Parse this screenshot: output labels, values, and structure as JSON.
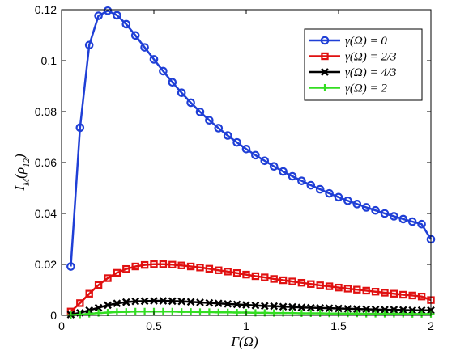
{
  "chart_data": {
    "type": "line",
    "title": "",
    "xlabel": "Γ(Ω)",
    "ylabel": "I_M(ρ12)",
    "xlim": [
      0,
      2
    ],
    "ylim": [
      0,
      0.12
    ],
    "xticks": [
      "0",
      "0.5",
      "1",
      "1.5",
      "2"
    ],
    "yticks": [
      "0",
      "0.02",
      "0.04",
      "0.06",
      "0.08",
      "0.1",
      "0.12"
    ],
    "grid": false,
    "legend_position": "top-right",
    "x": [
      0.05,
      0.1,
      0.15,
      0.2,
      0.25,
      0.3,
      0.35,
      0.4,
      0.45,
      0.5,
      0.55,
      0.6,
      0.65,
      0.7,
      0.75,
      0.8,
      0.85,
      0.9,
      0.95,
      1.0,
      1.05,
      1.1,
      1.15,
      1.2,
      1.25,
      1.3,
      1.35,
      1.4,
      1.45,
      1.5,
      1.55,
      1.6,
      1.65,
      1.7,
      1.75,
      1.8,
      1.85,
      1.9,
      1.95,
      2.0
    ],
    "series": [
      {
        "name": "γ(Ω) = 0",
        "color": "#1f3fd6",
        "marker": "circle",
        "values": [
          0.0192,
          0.0737,
          0.1061,
          0.1176,
          0.1196,
          0.1178,
          0.1143,
          0.1099,
          0.1052,
          0.1005,
          0.0959,
          0.0915,
          0.0874,
          0.0835,
          0.0799,
          0.0766,
          0.0735,
          0.0706,
          0.0679,
          0.0653,
          0.0629,
          0.0607,
          0.0585,
          0.0565,
          0.0546,
          0.0528,
          0.0511,
          0.0495,
          0.0479,
          0.0464,
          0.045,
          0.0437,
          0.0424,
          0.0412,
          0.04,
          0.0389,
          0.0378,
          0.0368,
          0.0358,
          0.0299
        ]
      },
      {
        "name": "γ(Ω) = 2/3",
        "color": "#e01010",
        "marker": "square",
        "values": [
          0.0015,
          0.0048,
          0.0085,
          0.0119,
          0.0146,
          0.0167,
          0.0182,
          0.0192,
          0.0198,
          0.0201,
          0.0201,
          0.0199,
          0.0196,
          0.0192,
          0.0188,
          0.0183,
          0.0177,
          0.0172,
          0.0166,
          0.016,
          0.0154,
          0.0149,
          0.0143,
          0.0138,
          0.0133,
          0.0128,
          0.0123,
          0.0118,
          0.0114,
          0.0109,
          0.0105,
          0.0101,
          0.0097,
          0.0093,
          0.0089,
          0.0085,
          0.0081,
          0.0078,
          0.0074,
          0.006
        ]
      },
      {
        "name": "γ(Ω) = 4/3",
        "color": "#000000",
        "marker": "x",
        "values": [
          0.0003,
          0.001,
          0.002,
          0.003,
          0.004,
          0.0047,
          0.0052,
          0.0055,
          0.0056,
          0.0057,
          0.0057,
          0.0056,
          0.0055,
          0.0053,
          0.0051,
          0.0049,
          0.0047,
          0.0045,
          0.0043,
          0.0041,
          0.0039,
          0.0037,
          0.0036,
          0.0034,
          0.0033,
          0.0031,
          0.003,
          0.0029,
          0.0028,
          0.0027,
          0.0026,
          0.0025,
          0.0024,
          0.0023,
          0.0022,
          0.0022,
          0.0021,
          0.002,
          0.002,
          0.002
        ]
      },
      {
        "name": "γ(Ω) = 2",
        "color": "#33dd22",
        "marker": "plus",
        "values": [
          0.0001,
          0.0003,
          0.0006,
          0.0009,
          0.0011,
          0.0013,
          0.0014,
          0.0015,
          0.0015,
          0.0015,
          0.0015,
          0.0015,
          0.0014,
          0.0014,
          0.0013,
          0.0013,
          0.0012,
          0.0012,
          0.0011,
          0.0011,
          0.001,
          0.001,
          0.0009,
          0.0009,
          0.0009,
          0.0008,
          0.0008,
          0.0008,
          0.0007,
          0.0007,
          0.0007,
          0.0007,
          0.0006,
          0.0006,
          0.0006,
          0.0006,
          0.0006,
          0.0005,
          0.0005,
          0.0005
        ]
      }
    ]
  }
}
